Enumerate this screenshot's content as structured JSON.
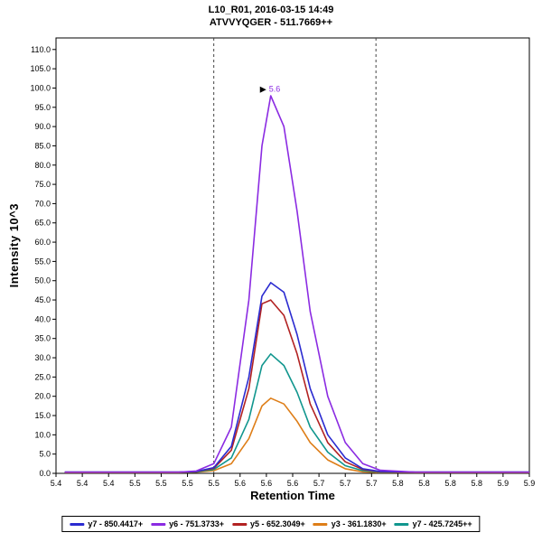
{
  "chart_data": {
    "type": "line",
    "title": "L10_R01, 2016-03-15 14:49",
    "subtitle": "ATVVYQGER - 511.7669++",
    "xlabel": "Retention Time",
    "ylabel": "Intensity 10^3",
    "xlim": [
      5.39,
      5.93
    ],
    "ylim": [
      0,
      113
    ],
    "grid": false,
    "legend_position": "bottom",
    "x_tick_labels": [
      "5.4",
      "5.4",
      "5.4",
      "5.5",
      "5.5",
      "5.5",
      "5.5",
      "5.6",
      "5.6",
      "5.6",
      "5.7",
      "5.7",
      "5.7",
      "5.8",
      "5.8",
      "5.8",
      "5.8",
      "5.9",
      "5.9"
    ],
    "y_tick_labels": [
      "0.0",
      "5.0",
      "10.0",
      "15.0",
      "20.0",
      "25.0",
      "30.0",
      "35.0",
      "40.0",
      "45.0",
      "50.0",
      "55.0",
      "60.0",
      "65.0",
      "70.0",
      "75.0",
      "80.0",
      "85.0",
      "90.0",
      "95.0",
      "100.0",
      "105.0",
      "110.0"
    ],
    "y_tick_step": 5,
    "x": [
      5.4,
      5.45,
      5.5,
      5.53,
      5.55,
      5.57,
      5.59,
      5.61,
      5.625,
      5.635,
      5.65,
      5.665,
      5.68,
      5.7,
      5.72,
      5.74,
      5.76,
      5.8,
      5.85,
      5.93
    ],
    "series": [
      {
        "name": "y7 - 850.4417+",
        "color": "#2b2bd0",
        "values": [
          0.3,
          0.3,
          0.3,
          0.3,
          0.5,
          1.5,
          7,
          25,
          46,
          49.5,
          47,
          36,
          22,
          10,
          4,
          1.2,
          0.5,
          0.3,
          0.3,
          0.3
        ]
      },
      {
        "name": "y6 - 751.3733+",
        "color": "#8b2be2",
        "values": [
          0.3,
          0.3,
          0.3,
          0.3,
          0.6,
          2.5,
          12,
          45,
          85,
          98,
          90,
          68,
          42,
          20,
          8,
          2.5,
          0.8,
          0.3,
          0.3,
          0.3
        ]
      },
      {
        "name": "y5 - 652.3049+",
        "color": "#b22222",
        "values": [
          0.3,
          0.3,
          0.3,
          0.3,
          0.5,
          1.3,
          6,
          22,
          44,
          45,
          41,
          31,
          18,
          8,
          3,
          1,
          0.4,
          0.3,
          0.3,
          0.3
        ]
      },
      {
        "name": "y3 - 361.1830+",
        "color": "#de7e18",
        "values": [
          0.2,
          0.2,
          0.2,
          0.2,
          0.3,
          0.7,
          2.5,
          9,
          17.5,
          19.5,
          18,
          13.5,
          8,
          3.5,
          1.2,
          0.4,
          0.2,
          0.2,
          0.2,
          0.2
        ]
      },
      {
        "name": "y7 - 425.7245++",
        "color": "#11968e",
        "values": [
          0.3,
          0.3,
          0.3,
          0.3,
          0.4,
          1,
          4,
          14,
          28,
          31,
          28,
          21,
          12,
          5.5,
          2,
          0.7,
          0.3,
          0.3,
          0.3,
          0.3
        ]
      }
    ],
    "integration_boundaries": [
      5.57,
      5.755
    ],
    "annotation": {
      "text": "5.6",
      "x": 5.635,
      "y": 99,
      "color": "#8b2be2",
      "pointer": "right-triangle"
    }
  }
}
